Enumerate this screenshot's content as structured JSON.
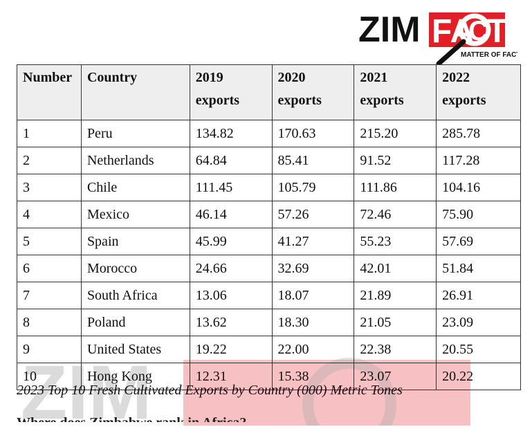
{
  "logo": {
    "text_left": "ZIM",
    "text_right": "FA",
    "text_c": "C",
    "text_t": "T",
    "tagline": "MATTER OF FACT",
    "brand_red": "#e21f26",
    "brand_black": "#111111"
  },
  "table": {
    "headers": [
      [
        "Number",
        ""
      ],
      [
        "Country",
        ""
      ],
      [
        "2019",
        "exports"
      ],
      [
        "2020",
        "exports"
      ],
      [
        "2021",
        "exports"
      ],
      [
        "2022",
        "exports"
      ]
    ],
    "rows": [
      [
        "1",
        "Peru",
        "134.82",
        "170.63",
        "215.20",
        "285.78"
      ],
      [
        "2",
        "Netherlands",
        "64.84",
        "85.41",
        "91.52",
        "117.28"
      ],
      [
        "3",
        "Chile",
        "111.45",
        "105.79",
        "111.86",
        "104.16"
      ],
      [
        "4",
        "Mexico",
        "46.14",
        "57.26",
        "72.46",
        "75.90"
      ],
      [
        "5",
        "Spain",
        "45.99",
        "41.27",
        "55.23",
        "57.69"
      ],
      [
        "6",
        "Morocco",
        "24.66",
        "32.69",
        "42.01",
        "51.84"
      ],
      [
        "7",
        "South Africa",
        "13.06",
        "18.07",
        "21.89",
        "26.91"
      ],
      [
        "8",
        "Poland",
        "13.62",
        "18.30",
        "21.05",
        "23.09"
      ],
      [
        "9",
        "United States",
        "19.22",
        "22.00",
        "22.38",
        "20.55"
      ],
      [
        "10",
        "Hong Kong",
        "12.31",
        "15.38",
        "23.07",
        "20.22"
      ]
    ]
  },
  "caption": "2023 Top 10 Fresh Cultivated Exports by Country (000) Metric Tones",
  "cut_text": "Where does Zimbabwe rank in Africa?",
  "colors": {
    "header_bg": "#eeeeee",
    "border": "#333333"
  }
}
